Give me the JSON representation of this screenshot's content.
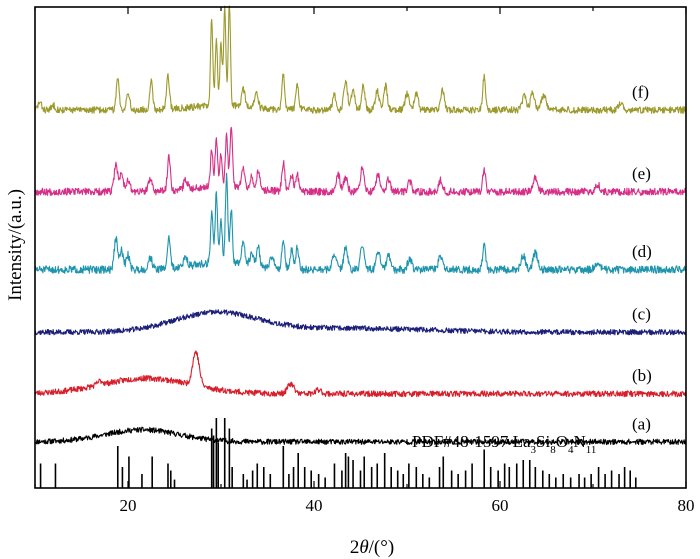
{
  "chart_data": {
    "type": "line",
    "x_axis": {
      "label_italic": "θ",
      "label_prefix": "2",
      "label_suffix": "/(°)",
      "range": [
        10,
        80
      ],
      "ticks": [
        {
          "value": 20,
          "label": "20"
        },
        {
          "value": 40,
          "label": "40"
        },
        {
          "value": 60,
          "label": "60"
        },
        {
          "value": 80,
          "label": "80"
        }
      ]
    },
    "y_axis": {
      "label": "Intensity/(a.u.)",
      "range": [
        0,
        100
      ]
    },
    "grid": false,
    "series": [
      {
        "name": "(a)",
        "color": "#000000",
        "baseline": 9.6,
        "humps": [
          [
            21.5,
            2.5,
            4.0
          ]
        ],
        "peaks": [],
        "noise": 0.55,
        "seed": 11
      },
      {
        "name": "(b)",
        "color": "#d61f2b",
        "baseline": 19.6,
        "humps": [
          [
            22.0,
            3.2,
            4.8
          ]
        ],
        "peaks": [
          [
            27.3,
            7.0,
            0.35
          ],
          [
            17.0,
            0.8,
            0.3
          ],
          [
            37.5,
            2.0,
            0.35
          ],
          [
            40.5,
            0.8,
            0.3
          ]
        ],
        "noise": 0.6,
        "seed": 23
      },
      {
        "name": "(c)",
        "color": "#1c1f7a",
        "baseline": 32.4,
        "humps": [
          [
            29.5,
            4.0,
            4.5
          ],
          [
            44.0,
            0.8,
            8.0
          ]
        ],
        "peaks": [],
        "noise": 0.55,
        "seed": 37
      },
      {
        "name": "(d)",
        "color": "#1f94ad",
        "baseline": 45.4,
        "humps": [
          [
            30.0,
            1.5,
            3.0
          ]
        ],
        "peaks": [
          [
            18.7,
            6.5,
            0.18
          ],
          [
            19.3,
            4.0,
            0.18
          ],
          [
            20.0,
            3.0,
            0.2
          ],
          [
            22.4,
            2.5,
            0.2
          ],
          [
            24.4,
            6.5,
            0.16
          ],
          [
            26.2,
            2.0,
            0.2
          ],
          [
            29.0,
            10.5,
            0.13
          ],
          [
            29.5,
            14.5,
            0.13
          ],
          [
            30.0,
            9.0,
            0.13
          ],
          [
            30.6,
            18.0,
            0.13
          ],
          [
            31.1,
            11.0,
            0.13
          ],
          [
            32.4,
            4.5,
            0.18
          ],
          [
            33.3,
            2.8,
            0.18
          ],
          [
            34.0,
            4.0,
            0.18
          ],
          [
            35.5,
            2.5,
            0.2
          ],
          [
            36.7,
            6.0,
            0.16
          ],
          [
            37.6,
            4.0,
            0.16
          ],
          [
            38.2,
            4.5,
            0.16
          ],
          [
            42.2,
            3.5,
            0.2
          ],
          [
            43.4,
            4.5,
            0.2
          ],
          [
            45.2,
            5.5,
            0.18
          ],
          [
            46.9,
            4.0,
            0.2
          ],
          [
            48.0,
            3.0,
            0.2
          ],
          [
            50.3,
            2.5,
            0.2
          ],
          [
            53.6,
            3.0,
            0.2
          ],
          [
            58.3,
            5.0,
            0.16
          ],
          [
            62.5,
            3.0,
            0.22
          ],
          [
            63.8,
            3.5,
            0.25
          ],
          [
            70.5,
            1.5,
            0.25
          ]
        ],
        "noise": 0.8,
        "seed": 51
      },
      {
        "name": "(e)",
        "color": "#d62f87",
        "baseline": 61.6,
        "humps": [
          [
            30.0,
            1.2,
            3.0
          ]
        ],
        "peaks": [
          [
            18.7,
            6.0,
            0.18
          ],
          [
            19.3,
            4.0,
            0.18
          ],
          [
            20.0,
            2.5,
            0.2
          ],
          [
            22.4,
            2.5,
            0.2
          ],
          [
            24.4,
            7.0,
            0.16
          ],
          [
            26.2,
            2.0,
            0.2
          ],
          [
            29.0,
            8.0,
            0.13
          ],
          [
            29.5,
            10.0,
            0.13
          ],
          [
            30.0,
            7.0,
            0.13
          ],
          [
            30.6,
            10.5,
            0.13
          ],
          [
            31.1,
            12.5,
            0.13
          ],
          [
            32.4,
            4.0,
            0.18
          ],
          [
            33.3,
            2.5,
            0.18
          ],
          [
            34.0,
            3.5,
            0.18
          ],
          [
            36.7,
            6.0,
            0.16
          ],
          [
            37.6,
            3.5,
            0.16
          ],
          [
            38.2,
            3.5,
            0.16
          ],
          [
            42.6,
            3.5,
            0.2
          ],
          [
            43.4,
            3.0,
            0.2
          ],
          [
            45.2,
            5.0,
            0.18
          ],
          [
            46.9,
            3.5,
            0.2
          ],
          [
            48.0,
            2.5,
            0.2
          ],
          [
            50.3,
            2.0,
            0.2
          ],
          [
            53.6,
            2.5,
            0.2
          ],
          [
            58.3,
            4.5,
            0.16
          ],
          [
            63.8,
            3.0,
            0.25
          ],
          [
            70.5,
            1.5,
            0.25
          ]
        ],
        "noise": 0.75,
        "seed": 67
      },
      {
        "name": "(f)",
        "color": "#9c9a2c",
        "baseline": 78.6,
        "humps": [
          [
            30.0,
            1.0,
            3.0
          ]
        ],
        "peaks": [
          [
            10.5,
            1.5,
            0.2
          ],
          [
            12.0,
            1.0,
            0.2
          ],
          [
            18.9,
            6.5,
            0.16
          ],
          [
            20.0,
            3.5,
            0.18
          ],
          [
            22.5,
            6.0,
            0.16
          ],
          [
            24.3,
            7.0,
            0.16
          ],
          [
            29.0,
            18.0,
            0.12
          ],
          [
            29.5,
            14.0,
            0.12
          ],
          [
            30.0,
            13.0,
            0.12
          ],
          [
            30.4,
            20.5,
            0.12
          ],
          [
            30.9,
            21.0,
            0.12
          ],
          [
            32.4,
            3.5,
            0.18
          ],
          [
            33.8,
            3.5,
            0.18
          ],
          [
            36.7,
            7.5,
            0.15
          ],
          [
            38.2,
            5.0,
            0.16
          ],
          [
            42.2,
            3.0,
            0.2
          ],
          [
            43.4,
            6.0,
            0.2
          ],
          [
            44.2,
            4.0,
            0.2
          ],
          [
            45.3,
            5.0,
            0.18
          ],
          [
            46.8,
            4.0,
            0.2
          ],
          [
            47.7,
            5.0,
            0.18
          ],
          [
            50.0,
            3.5,
            0.2
          ],
          [
            51.0,
            3.5,
            0.2
          ],
          [
            53.8,
            4.0,
            0.2
          ],
          [
            58.3,
            7.0,
            0.15
          ],
          [
            62.6,
            3.0,
            0.22
          ],
          [
            63.5,
            3.5,
            0.22
          ],
          [
            64.7,
            3.0,
            0.25
          ],
          [
            73.0,
            1.5,
            0.25
          ]
        ],
        "noise": 0.7,
        "seed": 83
      }
    ],
    "reference": {
      "label": "PDF#48-1597 La",
      "label_parts": [
        {
          "t": "PDF#48-1597 La",
          "sub": false
        },
        {
          "t": "3",
          "sub": true
        },
        {
          "t": "Si",
          "sub": false
        },
        {
          "t": "8",
          "sub": true
        },
        {
          "t": "O",
          "sub": false
        },
        {
          "t": "4",
          "sub": true
        },
        {
          "t": "N",
          "sub": false
        },
        {
          "t": "11",
          "sub": true
        }
      ],
      "lines": [
        [
          10.6,
          0.35
        ],
        [
          12.2,
          0.35
        ],
        [
          18.9,
          0.6
        ],
        [
          19.4,
          0.3
        ],
        [
          20.1,
          0.45
        ],
        [
          21.5,
          0.2
        ],
        [
          22.6,
          0.45
        ],
        [
          24.3,
          0.35
        ],
        [
          24.6,
          0.25
        ],
        [
          25.0,
          0.12
        ],
        [
          29.0,
          0.85
        ],
        [
          29.2,
          0.75
        ],
        [
          29.5,
          1.0
        ],
        [
          29.7,
          0.65
        ],
        [
          30.4,
          1.0
        ],
        [
          30.9,
          0.85
        ],
        [
          31.2,
          0.3
        ],
        [
          32.4,
          0.2
        ],
        [
          32.8,
          0.12
        ],
        [
          33.4,
          0.25
        ],
        [
          33.9,
          0.35
        ],
        [
          34.6,
          0.3
        ],
        [
          35.3,
          0.2
        ],
        [
          36.7,
          0.6
        ],
        [
          37.3,
          0.2
        ],
        [
          37.8,
          0.3
        ],
        [
          38.3,
          0.5
        ],
        [
          39.0,
          0.3
        ],
        [
          39.7,
          0.25
        ],
        [
          40.5,
          0.2
        ],
        [
          41.2,
          0.15
        ],
        [
          42.2,
          0.35
        ],
        [
          43.0,
          0.25
        ],
        [
          43.4,
          0.5
        ],
        [
          43.7,
          0.45
        ],
        [
          44.2,
          0.4
        ],
        [
          45.0,
          0.25
        ],
        [
          45.4,
          0.45
        ],
        [
          46.2,
          0.3
        ],
        [
          46.8,
          0.35
        ],
        [
          47.6,
          0.5
        ],
        [
          48.3,
          0.3
        ],
        [
          49.0,
          0.25
        ],
        [
          49.6,
          0.2
        ],
        [
          50.2,
          0.35
        ],
        [
          51.0,
          0.3
        ],
        [
          51.7,
          0.2
        ],
        [
          52.4,
          0.15
        ],
        [
          53.5,
          0.3
        ],
        [
          53.9,
          0.45
        ],
        [
          54.8,
          0.25
        ],
        [
          55.5,
          0.2
        ],
        [
          56.3,
          0.25
        ],
        [
          57.0,
          0.35
        ],
        [
          58.3,
          0.55
        ],
        [
          59.0,
          0.3
        ],
        [
          59.8,
          0.25
        ],
        [
          60.5,
          0.35
        ],
        [
          61.0,
          0.3
        ],
        [
          61.8,
          0.35
        ],
        [
          62.5,
          0.4
        ],
        [
          63.2,
          0.4
        ],
        [
          63.8,
          0.3
        ],
        [
          64.6,
          0.25
        ],
        [
          65.3,
          0.2
        ],
        [
          66.0,
          0.15
        ],
        [
          66.8,
          0.2
        ],
        [
          67.6,
          0.15
        ],
        [
          68.5,
          0.2
        ],
        [
          69.1,
          0.15
        ],
        [
          69.8,
          0.2
        ],
        [
          70.6,
          0.3
        ],
        [
          71.3,
          0.2
        ],
        [
          72.0,
          0.25
        ],
        [
          72.8,
          0.2
        ],
        [
          73.4,
          0.3
        ],
        [
          74.0,
          0.25
        ],
        [
          74.6,
          0.15
        ]
      ]
    }
  }
}
